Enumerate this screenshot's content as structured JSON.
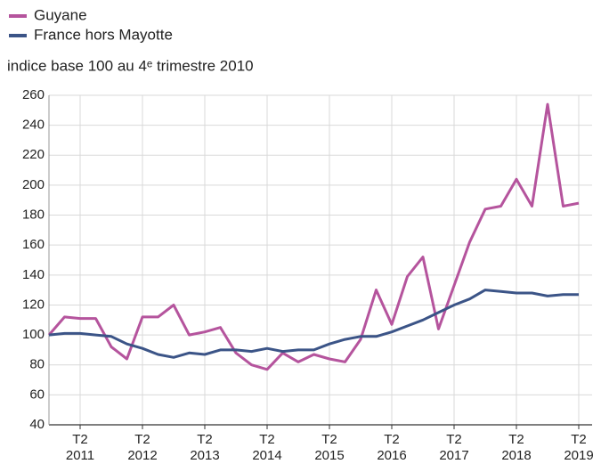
{
  "chart_data": {
    "type": "line",
    "subtitle": "indice base 100 au 4ᵉ trimestre 2010",
    "categories": [
      null,
      null,
      "T2\n2011",
      null,
      null,
      null,
      "T2\n2012",
      null,
      null,
      null,
      "T2\n2013",
      null,
      null,
      null,
      "T2\n2014",
      null,
      null,
      null,
      "T2\n2015",
      null,
      null,
      null,
      "T2\n2016",
      null,
      null,
      null,
      "T2\n2017",
      null,
      null,
      null,
      "T2\n2018",
      null,
      null,
      null,
      "T2\n2019"
    ],
    "series": [
      {
        "name": "Guyane",
        "color": "#b5549d",
        "values": [
          100,
          112,
          111,
          111,
          92,
          84,
          112,
          112,
          120,
          100,
          102,
          105,
          88,
          80,
          77,
          88,
          82,
          87,
          84,
          82,
          97,
          130,
          107,
          139,
          152,
          104,
          133,
          162,
          184,
          186,
          204,
          186,
          254,
          186,
          188
        ]
      },
      {
        "name": "France hors Mayotte",
        "color": "#3b5487",
        "values": [
          100,
          101,
          101,
          100,
          99,
          94,
          91,
          87,
          85,
          88,
          87,
          90,
          90,
          89,
          91,
          89,
          90,
          90,
          94,
          97,
          99,
          99,
          102,
          106,
          110,
          115,
          120,
          124,
          130,
          129,
          128,
          128,
          126,
          127,
          127
        ]
      }
    ],
    "ylim": [
      40,
      260
    ],
    "yticks": [
      40,
      60,
      80,
      100,
      120,
      140,
      160,
      180,
      200,
      220,
      240,
      260
    ],
    "grid": true,
    "legend": "top-left"
  }
}
